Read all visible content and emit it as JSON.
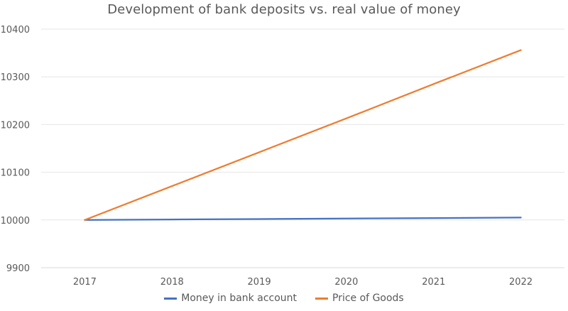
{
  "chart_data": {
    "type": "line",
    "title": "Development of bank deposits vs. real value of money",
    "xlabel": "",
    "ylabel": "",
    "x": [
      "2017",
      "2018",
      "2019",
      "2020",
      "2021",
      "2022"
    ],
    "ylim": [
      9900,
      10400
    ],
    "yticks": [
      9900,
      10000,
      10100,
      10200,
      10300,
      10400
    ],
    "grid": true,
    "legend_position": "bottom",
    "series": [
      {
        "name": "Money in bank account",
        "color": "#4472C4",
        "values": [
          10000,
          10001,
          10002,
          10003,
          10004,
          10005
        ]
      },
      {
        "name": "Price of Goods",
        "color": "#ED7D31",
        "values": [
          10000,
          10071,
          10142,
          10213,
          10285,
          10356
        ]
      }
    ]
  }
}
